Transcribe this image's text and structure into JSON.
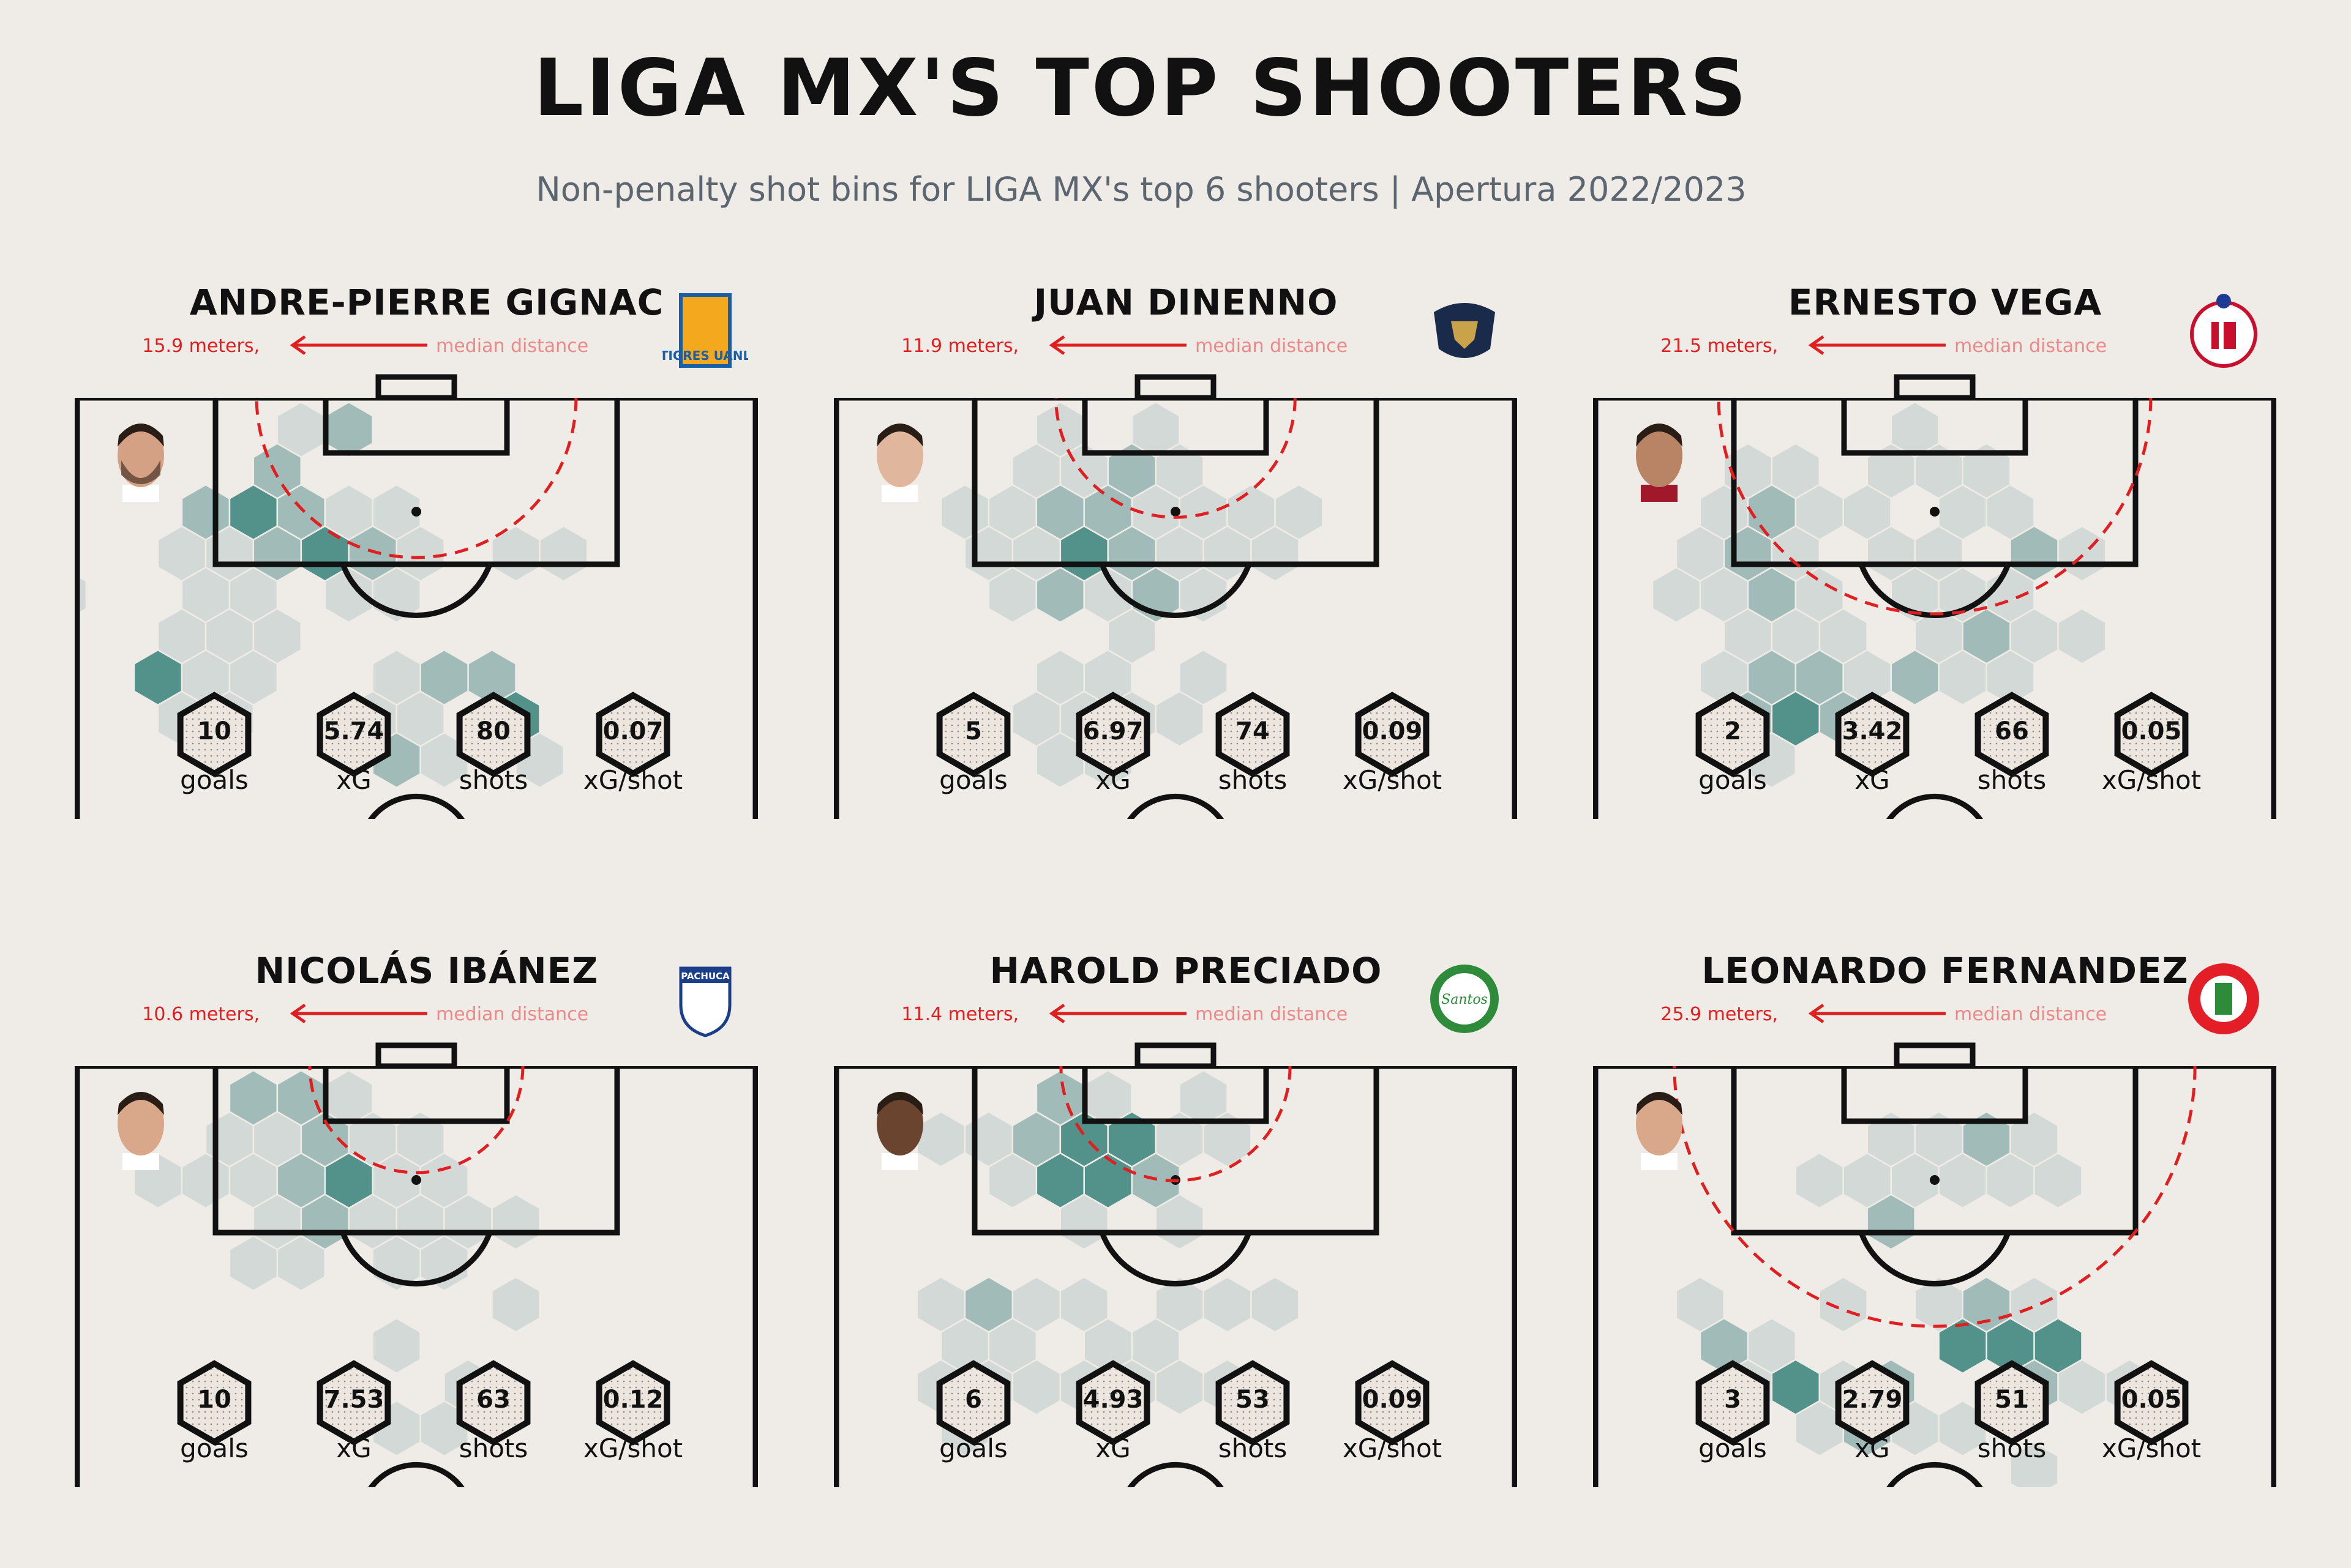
{
  "title": "LIGA MX'S TOP SHOOTERS",
  "subtitle": "Non-penalty shot bins for LIGA MX's top 6 shooters | Apertura 2022/2023",
  "labels": {
    "median": "median distance",
    "goals": "goals",
    "xg": "xG",
    "shots": "shots",
    "xgshot": "xG/shot"
  },
  "colors": {
    "background": "#efebe7",
    "hex_light": "#c9d3d1",
    "hex_mid": "#8db0ad",
    "hex_dark": "#4a8c86",
    "arc": "#e02020",
    "pitch_line": "#111111"
  },
  "chart_data": [
    {
      "type": "heatmap",
      "player": "ANDRE-PIERRE GIGNAC",
      "club_logo": "TIGRES UANL",
      "median_distance_m": 15.9,
      "median_text": "15.9 meters,",
      "stats": {
        "goals": "10",
        "xg": "5.74",
        "shots": "80",
        "xg_per_shot": "0.07"
      }
    },
    {
      "type": "heatmap",
      "player": "JUAN DINENNO",
      "club_logo": "pumas-logo",
      "median_distance_m": 11.9,
      "median_text": "11.9 meters,",
      "stats": {
        "goals": "5",
        "xg": "6.97",
        "shots": "74",
        "xg_per_shot": "0.09"
      }
    },
    {
      "type": "heatmap",
      "player": "ERNESTO VEGA",
      "club_logo": "chivas-logo",
      "median_distance_m": 21.5,
      "median_text": "21.5 meters,",
      "stats": {
        "goals": "2",
        "xg": "3.42",
        "shots": "66",
        "xg_per_shot": "0.05"
      }
    },
    {
      "type": "heatmap",
      "player": "NICOLÁS IBÁNEZ",
      "club_logo": "PACHUCA",
      "median_distance_m": 10.6,
      "median_text": "10.6 meters,",
      "stats": {
        "goals": "10",
        "xg": "7.53",
        "shots": "63",
        "xg_per_shot": "0.12"
      }
    },
    {
      "type": "heatmap",
      "player": "HAROLD PRECIADO",
      "club_logo": "Santos",
      "median_distance_m": 11.4,
      "median_text": "11.4 meters,",
      "stats": {
        "goals": "6",
        "xg": "4.93",
        "shots": "53",
        "xg_per_shot": "0.09"
      }
    },
    {
      "type": "heatmap",
      "player": "LEONARDO FERNANDEZ",
      "club_logo": "toluca-logo",
      "median_distance_m": 25.9,
      "median_text": "25.9 meters,",
      "stats": {
        "goals": "3",
        "xg": "2.79",
        "shots": "51",
        "xg_per_shot": "0.05"
      }
    }
  ]
}
